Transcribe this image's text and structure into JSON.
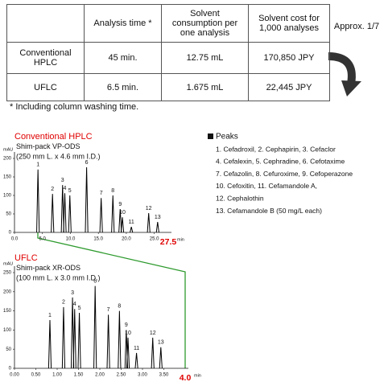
{
  "table": {
    "header": [
      "Analysis time *",
      "Solvent consumption per one analysis",
      "Solvent cost for 1,000 analyses"
    ],
    "rows": [
      [
        "Conventional HPLC",
        "45 min.",
        "12.75  mL",
        "170,850 JPY"
      ],
      [
        "UFLC",
        "6.5 min.",
        "1.675 mL",
        "22,445 JPY"
      ]
    ]
  },
  "note": "* Including column washing time.",
  "ratio_label": "Approx. 1/7",
  "peaks_legend": {
    "title": "Peaks",
    "items": [
      "1. Cefadroxil, 2. Cephapirin, 3. Cefaclor",
      "4. Cefalexin, 5. Cephradine, 6. Cefotaxime",
      "7. Cefazolin, 8. Cefuroxime, 9. Cefoperazone",
      "10. Cefoxitin, 11. Cefamandole A,",
      "12. Cephalothin",
      "13. Cefamandole B (50 mg/L each)"
    ]
  },
  "chart_data": [
    {
      "type": "chromatogram",
      "title": "Conventional HPLC",
      "title_color": "#e00000",
      "column": "Shim-pack VP-ODS",
      "column_size": "(250 mm L. x 4.6 mm I.D.)",
      "y_label": "mAU",
      "x_label": "min",
      "color": "#000000",
      "xlim": [
        0,
        27.5
      ],
      "xticks": [
        {
          "value": 0,
          "label": "0.0"
        },
        {
          "value": 5,
          "label": "5.0"
        },
        {
          "value": 10,
          "label": "10.0"
        },
        {
          "value": 15,
          "label": "15.0"
        },
        {
          "value": 20,
          "label": "20.0"
        },
        {
          "value": 25,
          "label": "25.0"
        }
      ],
      "ylim": [
        0,
        200
      ],
      "yticks": [
        0,
        50,
        100,
        150,
        200
      ],
      "annotations": [
        {
          "value": 27.5,
          "label": "27.5",
          "color": "#e00000"
        }
      ],
      "x": [
        4.2,
        6.8,
        8.6,
        9.0,
        9.9,
        12.9,
        15.5,
        17.6,
        18.9,
        19.3,
        20.9,
        24.0,
        25.6
      ],
      "values": [
        170,
        104,
        128,
        106,
        100,
        176,
        93,
        100,
        63,
        41,
        15,
        52,
        28
      ],
      "peak_labels": [
        "1",
        "2",
        "3",
        "4",
        "5",
        "6",
        "7",
        "8",
        "9",
        "10",
        "11",
        "12",
        "13"
      ]
    },
    {
      "type": "chromatogram",
      "title": "UFLC",
      "title_color": "#e00000",
      "column": "Shim-pack XR-ODS",
      "column_size": "(100 mm L. x 3.0 mm I.D.)",
      "y_label": "mAU",
      "x_label": "min",
      "color": "#000000",
      "xlim": [
        0,
        4
      ],
      "xticks": [
        {
          "value": 0,
          "label": "0.00"
        },
        {
          "value": 0.5,
          "label": "0.50"
        },
        {
          "value": 1,
          "label": "1.00"
        },
        {
          "value": 1.5,
          "label": "1.50"
        },
        {
          "value": 2,
          "label": "2.00"
        },
        {
          "value": 2.5,
          "label": "2.50"
        },
        {
          "value": 3,
          "label": "3.00"
        },
        {
          "value": 3.5,
          "label": "3.50"
        }
      ],
      "ylim": [
        0,
        250
      ],
      "yticks": [
        0,
        50,
        100,
        150,
        200,
        250
      ],
      "annotations": [
        {
          "value": 4,
          "label": "4.0",
          "color": "#e00000"
        }
      ],
      "x": [
        0.83,
        1.15,
        1.36,
        1.41,
        1.52,
        1.89,
        2.2,
        2.46,
        2.62,
        2.66,
        2.86,
        3.24,
        3.43
      ],
      "values": [
        126,
        160,
        185,
        155,
        145,
        215,
        140,
        150,
        100,
        80,
        40,
        80,
        55
      ],
      "peak_labels": [
        "1",
        "2",
        "3",
        "4",
        "5",
        "6",
        "7",
        "8",
        "9",
        "10",
        "11",
        "12",
        "13"
      ]
    }
  ]
}
